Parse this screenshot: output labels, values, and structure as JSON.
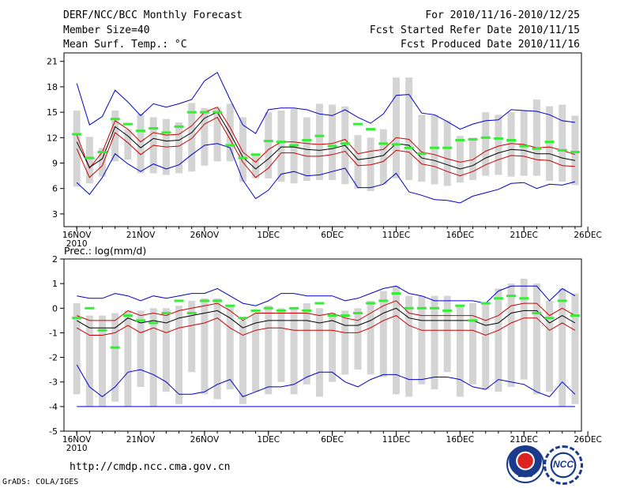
{
  "header": {
    "title": "DERF/NCC/BCC Monthly Forecast",
    "member_size": "Member Size=40",
    "variable": "Mean Surf. Temp.: °C",
    "period": "For 2010/11/16-2010/12/25",
    "start_date": "Fcst Started Refer Date 2010/11/15",
    "produced_date": "Fcst Produced Date 2010/11/16"
  },
  "footer": {
    "url": "http://cmdp.ncc.cma.gov.cn",
    "grads": "GrADS: COLA/IGES",
    "logo_left": "BCC",
    "logo_right": "NCC"
  },
  "colors": {
    "max_min": "#0000cc",
    "spread": "#cc0000",
    "ensemble_mean": "#000000",
    "bars": "#d4d4d4",
    "marks": "#33ee33"
  },
  "chart_data": [
    {
      "type": "line",
      "title": "Mean Surf. Temp.: °C",
      "ylim": [
        1.5,
        22
      ],
      "xlim": [
        -1,
        39.5
      ],
      "x": [
        0,
        1,
        2,
        3,
        4,
        5,
        6,
        7,
        8,
        9,
        10,
        11,
        12,
        13,
        14,
        15,
        16,
        17,
        18,
        19,
        20,
        21,
        22,
        23,
        24,
        25,
        26,
        27,
        28,
        29,
        30,
        31,
        32,
        33,
        34,
        35,
        36,
        37,
        38,
        39
      ],
      "xticks": [
        0,
        5,
        10,
        15,
        20,
        25,
        30,
        35,
        40
      ],
      "xtick_labels": [
        "16NOV",
        "21NOV",
        "26NOV",
        "1DEC",
        "6DEC",
        "11DEC",
        "16DEC",
        "21DEC",
        "26DEC"
      ],
      "xtick_sublabel": "2010",
      "yticks": [
        3,
        6,
        9,
        12,
        15,
        18,
        21
      ],
      "series": [
        {
          "name": "max",
          "values": [
            18.4,
            13.5,
            14.5,
            17.6,
            16.2,
            14.6,
            16.0,
            15.6,
            16.0,
            16.5,
            18.7,
            19.7,
            16.5,
            13.5,
            12.5,
            15.3,
            15.5,
            15.5,
            15.3,
            14.8,
            14.6,
            15.3,
            14.4,
            13.7,
            14.8,
            17.0,
            17.1,
            14.9,
            14.7,
            13.9,
            13.0,
            13.6,
            14.0,
            14.1,
            15.3,
            15.2,
            15.1,
            14.7,
            14.0,
            13.8
          ]
        },
        {
          "name": "mean_plus_sd",
          "values": [
            12.3,
            8.4,
            10.3,
            14.0,
            13.0,
            11.5,
            12.6,
            12.3,
            12.4,
            13.4,
            15.0,
            15.6,
            13.2,
            10.3,
            9.1,
            10.6,
            11.5,
            11.5,
            11.3,
            11.2,
            11.3,
            11.8,
            10.1,
            10.4,
            10.6,
            12.0,
            11.8,
            10.3,
            10.0,
            9.5,
            9.1,
            9.4,
            10.4,
            11.0,
            11.3,
            11.2,
            10.8,
            10.9,
            10.5,
            10.0
          ]
        },
        {
          "name": "ensemble_mean",
          "values": [
            11.5,
            8.5,
            9.5,
            13.3,
            12.2,
            10.8,
            11.9,
            11.6,
            11.7,
            12.6,
            14.3,
            15.0,
            12.5,
            9.7,
            8.3,
            9.5,
            10.9,
            10.9,
            10.6,
            10.5,
            10.7,
            11.1,
            9.4,
            9.6,
            9.9,
            11.3,
            11.1,
            9.6,
            9.3,
            8.8,
            8.3,
            8.7,
            9.6,
            10.2,
            10.6,
            10.5,
            10.1,
            10.1,
            9.6,
            9.3
          ]
        },
        {
          "name": "mean_minus_sd",
          "values": [
            10.7,
            7.3,
            8.7,
            12.6,
            11.4,
            10.0,
            11.1,
            10.9,
            11.0,
            11.9,
            13.6,
            14.4,
            11.8,
            9.1,
            7.3,
            8.4,
            10.2,
            10.2,
            9.8,
            9.8,
            10.0,
            10.4,
            8.7,
            8.8,
            9.2,
            10.5,
            10.3,
            8.9,
            8.6,
            8.0,
            7.5,
            8.0,
            8.8,
            9.4,
            9.9,
            9.8,
            9.4,
            9.3,
            8.7,
            8.6
          ]
        },
        {
          "name": "min",
          "values": [
            6.7,
            5.3,
            7.3,
            10.1,
            8.9,
            8.0,
            8.9,
            8.3,
            8.8,
            10.0,
            11.1,
            11.3,
            10.8,
            7.0,
            4.8,
            5.8,
            7.7,
            8.0,
            7.5,
            7.6,
            8.0,
            8.4,
            6.1,
            6.1,
            6.5,
            7.8,
            5.6,
            5.2,
            4.7,
            4.6,
            4.3,
            5.1,
            5.5,
            5.9,
            6.6,
            6.7,
            6.0,
            6.5,
            6.4,
            6.8
          ]
        }
      ],
      "bars_low": [
        6.2,
        6.6,
        7.4,
        9.2,
        9.4,
        7.8,
        7.8,
        7.6,
        7.8,
        8.0,
        8.7,
        9.2,
        9.2,
        6.8,
        7.2,
        7.2,
        6.8,
        6.6,
        6.9,
        7.0,
        7.0,
        6.5,
        6.0,
        5.7,
        6.5,
        7.2,
        7.0,
        6.8,
        6.5,
        6.3,
        6.7,
        7.0,
        7.5,
        7.6,
        7.4,
        7.5,
        7.5,
        6.9,
        6.8,
        6.4
      ],
      "bars_high": [
        15.2,
        12.1,
        10.8,
        15.2,
        13.0,
        14.8,
        14.4,
        14.2,
        13.8,
        16.1,
        15.5,
        15.6,
        16.0,
        14.4,
        10.1,
        15.0,
        15.2,
        15.4,
        14.4,
        16.0,
        15.9,
        15.7,
        12.3,
        12.0,
        13.0,
        19.1,
        19.1,
        14.7,
        14.7,
        14.0,
        12.2,
        12.0,
        15.0,
        14.7,
        15.0,
        15.2,
        16.5,
        15.7,
        15.9,
        14.6
      ],
      "marks": [
        12.4,
        9.6,
        10.3,
        14.2,
        13.6,
        12.8,
        13.1,
        12.6,
        13.3,
        15.0,
        15.0,
        15.0,
        11.1,
        9.6,
        10.0,
        11.6,
        11.5,
        11.1,
        11.7,
        12.2,
        11.0,
        11.3,
        13.6,
        13.0,
        11.3,
        11.2,
        10.8,
        10.1,
        10.8,
        10.8,
        11.7,
        11.8,
        12.0,
        11.9,
        11.7,
        11.0,
        10.7,
        11.5,
        10.5,
        10.3
      ]
    },
    {
      "type": "line",
      "title": "Prec.: log(mm/d)",
      "ylim": [
        -5,
        2
      ],
      "xlim": [
        -1,
        39.5
      ],
      "x": [
        0,
        1,
        2,
        3,
        4,
        5,
        6,
        7,
        8,
        9,
        10,
        11,
        12,
        13,
        14,
        15,
        16,
        17,
        18,
        19,
        20,
        21,
        22,
        23,
        24,
        25,
        26,
        27,
        28,
        29,
        30,
        31,
        32,
        33,
        34,
        35,
        36,
        37,
        38,
        39
      ],
      "xticks": [
        0,
        5,
        10,
        15,
        20,
        25,
        30,
        35,
        40
      ],
      "xtick_labels": [
        "16NOV",
        "21NOV",
        "26NOV",
        "1DEC",
        "6DEC",
        "11DEC",
        "16DEC",
        "21DEC",
        "26DEC"
      ],
      "xtick_sublabel": "2010",
      "yticks": [
        -5,
        -4,
        -3,
        -2,
        -1,
        0,
        1,
        2
      ],
      "series": [
        {
          "name": "max",
          "values": [
            0.5,
            0.4,
            0.4,
            0.6,
            0.5,
            0.3,
            0.5,
            0.4,
            0.5,
            0.6,
            0.6,
            0.8,
            0.5,
            0.2,
            0.1,
            0.3,
            0.6,
            0.6,
            0.5,
            0.5,
            0.5,
            0.3,
            0.4,
            0.6,
            0.8,
            0.9,
            0.6,
            0.5,
            0.3,
            0.3,
            0.3,
            0.3,
            0.2,
            0.7,
            0.9,
            0.9,
            0.9,
            0.3,
            0.8,
            0.5
          ]
        },
        {
          "name": "mean_plus_sd",
          "values": [
            -0.3,
            -0.5,
            -0.5,
            -0.5,
            -0.1,
            -0.3,
            -0.2,
            -0.3,
            -0.1,
            0.0,
            0.1,
            0.2,
            -0.1,
            -0.5,
            -0.2,
            -0.2,
            -0.2,
            -0.2,
            -0.2,
            -0.3,
            -0.2,
            -0.4,
            -0.5,
            -0.2,
            0.1,
            0.3,
            -0.2,
            -0.3,
            -0.3,
            -0.3,
            -0.3,
            -0.3,
            -0.5,
            -0.3,
            0.1,
            0.2,
            0.2,
            -0.3,
            0.0,
            -0.3
          ]
        },
        {
          "name": "ensemble_mean",
          "values": [
            -0.5,
            -0.8,
            -0.8,
            -0.8,
            -0.4,
            -0.6,
            -0.5,
            -0.6,
            -0.4,
            -0.3,
            -0.2,
            -0.1,
            -0.4,
            -0.8,
            -0.6,
            -0.5,
            -0.5,
            -0.5,
            -0.5,
            -0.6,
            -0.5,
            -0.7,
            -0.7,
            -0.5,
            -0.2,
            0.0,
            -0.4,
            -0.5,
            -0.5,
            -0.5,
            -0.5,
            -0.5,
            -0.7,
            -0.6,
            -0.2,
            -0.1,
            -0.1,
            -0.6,
            -0.3,
            -0.6
          ]
        },
        {
          "name": "mean_minus_sd",
          "values": [
            -0.8,
            -1.1,
            -1.1,
            -1.0,
            -0.7,
            -1.0,
            -0.8,
            -1.0,
            -0.8,
            -0.7,
            -0.6,
            -0.4,
            -0.8,
            -1.1,
            -0.9,
            -0.8,
            -0.8,
            -0.9,
            -0.9,
            -0.9,
            -0.9,
            -1.0,
            -1.0,
            -0.8,
            -0.5,
            -0.3,
            -0.7,
            -0.9,
            -0.9,
            -0.9,
            -0.9,
            -0.9,
            -1.1,
            -0.9,
            -0.6,
            -0.4,
            -0.4,
            -0.9,
            -0.6,
            -0.9
          ]
        },
        {
          "name": "min",
          "values": [
            -2.3,
            -3.2,
            -3.6,
            -3.2,
            -2.6,
            -2.5,
            -2.7,
            -3.0,
            -3.5,
            -3.5,
            -3.4,
            -3.1,
            -2.9,
            -3.6,
            -3.4,
            -3.2,
            -3.2,
            -3.1,
            -2.8,
            -2.6,
            -2.6,
            -3.0,
            -3.2,
            -2.9,
            -2.7,
            -2.7,
            -2.9,
            -2.9,
            -2.8,
            -2.8,
            -2.9,
            -3.2,
            -3.3,
            -2.9,
            -3.0,
            -3.1,
            -3.4,
            -3.6,
            -3.0,
            -3.5
          ]
        },
        {
          "name": "lower_bound",
          "values": [
            -4.0,
            -4.0,
            -4.0,
            -4.0,
            -4.0,
            -4.0,
            -4.0,
            -4.0,
            -4.0,
            -4.0,
            -4.0,
            -4.0,
            -4.0,
            -4.0,
            -4.0,
            -4.0,
            -4.0,
            -4.0,
            -4.0,
            -4.0,
            -4.0,
            -4.0,
            -4.0,
            -4.0,
            -4.0,
            -4.0,
            -4.0,
            -4.0,
            -4.0,
            -4.0,
            -4.0,
            -4.0,
            -4.0,
            -4.0,
            -4.0,
            -4.0,
            -4.0,
            -4.0,
            -4.0,
            -4.0
          ]
        }
      ],
      "bars_low": [
        -3.5,
        -4.0,
        -4.0,
        -3.8,
        -4.0,
        -3.2,
        -4.0,
        -3.4,
        -3.9,
        -2.6,
        -3.5,
        -3.7,
        -3.3,
        -3.9,
        -3.4,
        -3.5,
        -3.0,
        -3.5,
        -3.1,
        -3.6,
        -3.0,
        -2.7,
        -2.5,
        -2.7,
        -2.8,
        -3.5,
        -3.6,
        -3.1,
        -3.3,
        -2.6,
        -3.6,
        -3.1,
        -3.3,
        -3.4,
        -3.2,
        -2.9,
        -3.5,
        -3.4,
        -4.0,
        -3.9
      ],
      "bars_high": [
        0.2,
        -0.3,
        -0.3,
        -0.2,
        -0.1,
        -0.1,
        0.0,
        0.0,
        0.1,
        0.3,
        0.4,
        0.4,
        0.1,
        -0.5,
        -0.2,
        0.1,
        0.0,
        0.0,
        0.2,
        0.0,
        -0.2,
        -0.1,
        0.0,
        0.3,
        0.7,
        0.9,
        0.5,
        0.5,
        0.5,
        0.5,
        0.1,
        0.2,
        0.2,
        0.8,
        1.0,
        1.2,
        1.0,
        0.3,
        0.8,
        0.6
      ],
      "marks": [
        -0.4,
        0.0,
        -0.9,
        -1.6,
        -0.3,
        -0.5,
        -0.6,
        -0.2,
        0.3,
        -0.2,
        0.3,
        0.3,
        0.1,
        -0.4,
        -0.1,
        0.0,
        -0.1,
        0.0,
        -0.1,
        0.2,
        -0.3,
        -0.3,
        -0.2,
        0.2,
        0.3,
        0.6,
        0.0,
        0.0,
        0.0,
        -0.1,
        0.1,
        -0.5,
        0.2,
        0.4,
        0.5,
        0.4,
        -0.2,
        -0.4,
        0.3,
        -0.3
      ]
    }
  ]
}
